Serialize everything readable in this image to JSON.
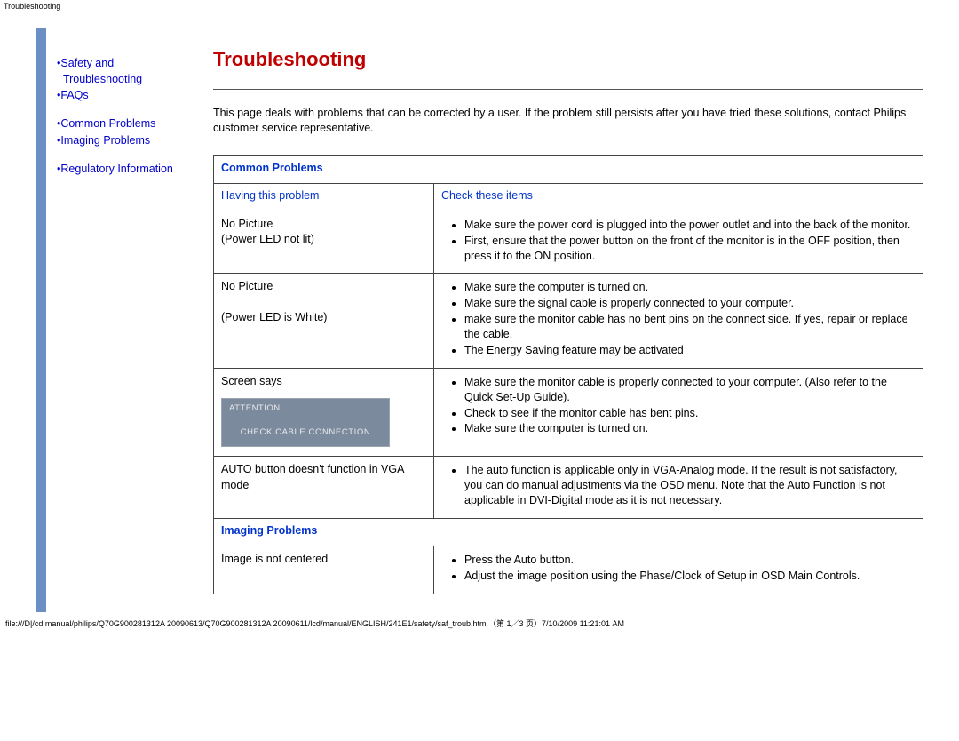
{
  "page_label": "Troubleshooting",
  "sidebar": {
    "items": [
      {
        "bullet": "•",
        "label": "Safety and Troubleshooting",
        "multiline": true
      },
      {
        "bullet": "•",
        "label": "FAQs"
      },
      {
        "spacer": true
      },
      {
        "bullet": "•",
        "label": "Common Problems"
      },
      {
        "bullet": "•",
        "label": "Imaging Problems"
      },
      {
        "spacer": true
      },
      {
        "bullet": "•",
        "label": "Regulatory Information"
      }
    ]
  },
  "content": {
    "title": "Troubleshooting",
    "intro": "This page deals with problems that can be corrected by a user. If the problem still persists after you have tried these solutions, contact Philips customer service representative.",
    "section1_header": "Common Problems",
    "col_left": "Having this problem",
    "col_right": "Check these items",
    "rows": [
      {
        "problem_lines": [
          "No Picture",
          "(Power LED not lit)"
        ],
        "checks": [
          "Make sure the power cord is plugged into the power outlet and into the back of the monitor.",
          "First, ensure that the power button on the front of the monitor is in the OFF position, then press it to the ON position."
        ]
      },
      {
        "problem_lines": [
          "No Picture",
          "",
          "(Power LED is White)"
        ],
        "checks": [
          "Make sure the computer is turned on.",
          "Make sure the signal cable is properly connected to your computer.",
          "make sure the monitor cable has no bent pins on the connect side. If yes, repair or replace the cable.",
          "The Energy Saving feature may be activated"
        ]
      },
      {
        "problem_lines": [
          "Screen says"
        ],
        "attention": {
          "top": "ATTENTION",
          "body": "CHECK CABLE CONNECTION"
        },
        "checks": [
          "Make sure the monitor cable is properly connected to your computer. (Also refer to the Quick Set-Up Guide).",
          "Check to see if the monitor cable has bent pins.",
          "Make sure the computer is turned on."
        ]
      },
      {
        "problem_lines": [
          "AUTO button doesn't function in VGA mode"
        ],
        "checks": [
          "The auto function is applicable only in VGA-Analog mode.  If the result is not satisfactory, you can do manual adjustments via the OSD menu.  Note that the Auto Function is not applicable in DVI-Digital mode as it is not necessary."
        ]
      }
    ],
    "section2_header": "Imaging Problems",
    "rows2": [
      {
        "problem_lines": [
          "Image is not centered"
        ],
        "checks": [
          "Press the Auto button.",
          "Adjust the image position using the Phase/Clock of Setup in OSD Main Controls."
        ]
      }
    ]
  },
  "footer_path": "file:///D|/cd manual/philips/Q70G900281312A 20090613/Q70G900281312A 20090611/lcd/manual/ENGLISH/241E1/safety/saf_troub.htm （第 1／3 页）7/10/2009 11:21:01 AM"
}
